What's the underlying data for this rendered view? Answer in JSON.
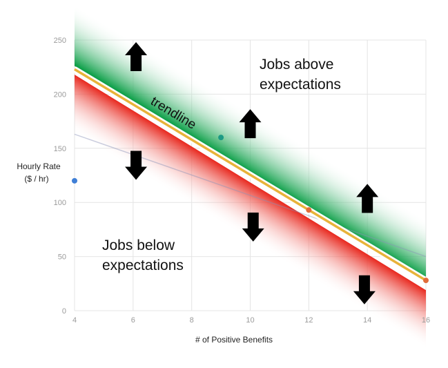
{
  "chart_data": {
    "type": "scatter",
    "xlabel": "# of Positive Benefits",
    "ylabel_lines": [
      "Hourly Rate",
      "($ / hr)"
    ],
    "xlim": [
      4,
      16
    ],
    "ylim": [
      0,
      250
    ],
    "x_ticks": [
      4,
      6,
      8,
      10,
      12,
      14,
      16
    ],
    "y_ticks": [
      0,
      50,
      100,
      150,
      200,
      250
    ],
    "grid": true,
    "points": [
      {
        "x": 4,
        "y": 120,
        "color": "#3f7fd6"
      },
      {
        "x": 9,
        "y": 160,
        "color": "#1d9a84"
      },
      {
        "x": 12,
        "y": 93,
        "color": "#e06c3a"
      },
      {
        "x": 16,
        "y": 28,
        "color": "#e06c3a"
      }
    ],
    "trendline": {
      "x": [
        4,
        16
      ],
      "y": [
        223,
        28
      ],
      "color": "#e8b33a"
    },
    "faint_line": {
      "x": [
        4,
        16
      ],
      "y": [
        163,
        50
      ]
    },
    "bands": {
      "above_color": "#0fa04a",
      "below_color": "#e8281e",
      "above": {
        "x": [
          4,
          16
        ],
        "y_low": [
          226,
          31
        ],
        "y_high": [
          283,
          85
        ]
      },
      "below": {
        "x": [
          4,
          16
        ],
        "y_low": [
          163,
          -35
        ],
        "y_high": [
          218,
          19
        ]
      }
    },
    "arrows": [
      {
        "x": 6.1,
        "y": 236,
        "dir": "up"
      },
      {
        "x": 10.0,
        "y": 174,
        "dir": "up"
      },
      {
        "x": 14.0,
        "y": 105,
        "dir": "up"
      },
      {
        "x": 6.1,
        "y": 133,
        "dir": "down"
      },
      {
        "x": 10.1,
        "y": 76,
        "dir": "down"
      },
      {
        "x": 13.9,
        "y": 18,
        "dir": "down"
      }
    ],
    "annotations": {
      "above_lines": [
        "Jobs above",
        "expectations"
      ],
      "below_lines": [
        "Jobs below",
        "expectations"
      ],
      "trend_label": "trendline"
    }
  }
}
